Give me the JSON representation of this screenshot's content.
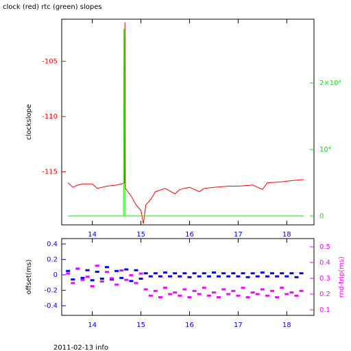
{
  "chart_data": [
    {
      "type": "line",
      "title": "clock (red) rtc (green) slopes",
      "y_label": "clockslope",
      "xlim": [
        13.37,
        18.56
      ],
      "xticks": [
        14,
        15,
        16,
        17,
        18
      ],
      "ylim": [
        -119.8,
        -101.2
      ],
      "yticks": [
        -105,
        -110,
        -115
      ],
      "y2lim": [
        -1340,
        29600
      ],
      "y2ticks": [
        {
          "value": 20000,
          "label": "2×10⁴"
        },
        {
          "value": 10000,
          "label": "10⁴"
        },
        0
      ],
      "series": [
        {
          "color": "#ff0000",
          "x": [
            13.5,
            13.6,
            13.7,
            13.8,
            14.0,
            14.1,
            14.3,
            14.5,
            14.6,
            14.66,
            14.67,
            14.68,
            14.8,
            14.9,
            15.0,
            15.05,
            15.1,
            15.2,
            15.3,
            15.5,
            15.7,
            15.8,
            16.0,
            16.2,
            16.3,
            16.5,
            16.8,
            17.0,
            17.3,
            17.5,
            17.6,
            17.9,
            18.1,
            18.35
          ],
          "values": [
            -116.0,
            -116.4,
            -116.2,
            -116.1,
            -116.1,
            -116.5,
            -116.3,
            -116.2,
            -116.1,
            -116.0,
            -101.5,
            -116.5,
            -117.2,
            -118.0,
            -118.5,
            -119.7,
            -118.0,
            -117.5,
            -116.8,
            -116.5,
            -117.0,
            -116.6,
            -116.4,
            -116.8,
            -116.5,
            -116.4,
            -116.3,
            -116.3,
            -116.2,
            -116.6,
            -116.0,
            -115.9,
            -115.8,
            -115.7
          ]
        },
        {
          "color": "#00ee00",
          "axis": "y2",
          "x": [
            13.5,
            14.64,
            14.65,
            14.66,
            14.67,
            18.35
          ],
          "values": [
            0,
            0,
            28100,
            28100,
            0,
            0
          ]
        }
      ]
    },
    {
      "type": "scatter",
      "y_label": "offset(ms)",
      "y2_label": "rnd-trip(ms)",
      "xlim": [
        13.37,
        18.56
      ],
      "xticks": [
        14,
        15,
        16,
        17,
        18
      ],
      "ylim": [
        -0.525,
        0.47
      ],
      "yticks": [
        0.4,
        0.2,
        0,
        -0.2,
        -0.4
      ],
      "y2lim": [
        0.065,
        0.552
      ],
      "y2ticks": [
        0.5,
        0.4,
        0.3,
        0.2,
        0.1
      ],
      "series": [
        {
          "color": "#0000ff",
          "x": [
            13.5,
            13.6,
            13.7,
            13.8,
            13.9,
            14.0,
            14.1,
            14.2,
            14.3,
            14.4,
            14.5,
            14.6,
            14.7,
            14.8,
            14.9,
            15.0,
            15.1,
            15.2,
            15.3,
            15.4,
            15.5,
            15.6,
            15.7,
            15.8,
            15.9,
            16.0,
            16.1,
            16.2,
            16.3,
            16.4,
            16.5,
            16.6,
            16.7,
            16.8,
            16.9,
            17.0,
            17.1,
            17.2,
            17.3,
            17.4,
            17.5,
            17.6,
            17.7,
            17.8,
            17.9,
            18.0,
            18.1,
            18.2,
            18.3
          ],
          "values": [
            0.05,
            -0.06,
            0.08,
            -0.04,
            0.06,
            -0.07,
            0.04,
            -0.05,
            0.1,
            -0.06,
            0.05,
            -0.04,
            0.07,
            -0.08,
            0.06,
            -0.05,
            0.02,
            -0.02,
            0.02,
            -0.02,
            0.03,
            -0.02,
            0.02,
            -0.02,
            0.02,
            -0.03,
            0.02,
            -0.02,
            0.02,
            -0.02,
            0.03,
            -0.02,
            0.02,
            -0.02,
            0.02,
            -0.02,
            0.02,
            -0.03,
            0.02,
            -0.02,
            0.03,
            -0.02,
            0.02,
            -0.02,
            0.02,
            -0.02,
            0.02,
            -0.03,
            0.02
          ]
        },
        {
          "color": "#ff00ff",
          "axis": "y2",
          "x": [
            13.5,
            13.6,
            13.7,
            13.8,
            13.9,
            14.0,
            14.1,
            14.2,
            14.3,
            14.4,
            14.5,
            14.6,
            14.7,
            14.8,
            14.9,
            15.0,
            15.1,
            15.2,
            15.3,
            15.4,
            15.5,
            15.6,
            15.7,
            15.8,
            15.9,
            16.0,
            16.1,
            16.2,
            16.3,
            16.4,
            16.5,
            16.6,
            16.7,
            16.8,
            16.9,
            17.0,
            17.1,
            17.2,
            17.3,
            17.4,
            17.5,
            17.6,
            17.7,
            17.8,
            17.9,
            18.0,
            18.1,
            18.2,
            18.3
          ],
          "values": [
            0.33,
            0.27,
            0.36,
            0.29,
            0.31,
            0.25,
            0.38,
            0.28,
            0.34,
            0.3,
            0.26,
            0.35,
            0.29,
            0.32,
            0.27,
            0.33,
            0.23,
            0.19,
            0.22,
            0.18,
            0.24,
            0.2,
            0.21,
            0.19,
            0.23,
            0.18,
            0.22,
            0.2,
            0.24,
            0.19,
            0.21,
            0.18,
            0.23,
            0.2,
            0.22,
            0.19,
            0.24,
            0.18,
            0.21,
            0.2,
            0.23,
            0.19,
            0.22,
            0.18,
            0.24,
            0.2,
            0.21,
            0.19,
            0.22
          ]
        }
      ]
    }
  ],
  "footer": "2011-02-13 info"
}
